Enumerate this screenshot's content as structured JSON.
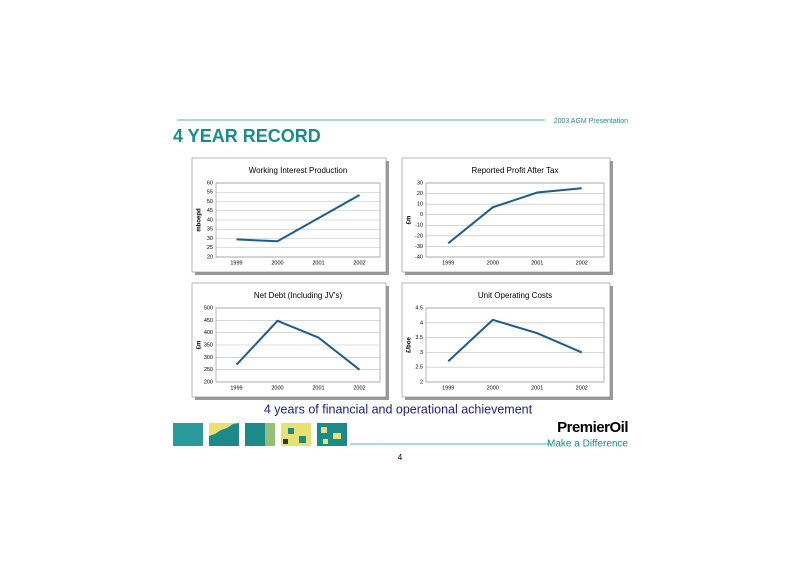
{
  "header": {
    "presentation": "2003 AGM Presentation",
    "title": "4 YEAR RECORD"
  },
  "caption": "4 years of financial and operational achievement",
  "footer": {
    "company": "PremierOil",
    "slogan": "Make a Difference",
    "page": "4"
  },
  "chart_data": [
    {
      "type": "line",
      "title": "Working Interest Production",
      "y_label": "mboepd",
      "categories": [
        "1999",
        "2000",
        "2001",
        "2002"
      ],
      "values": [
        29.5,
        28.5,
        41,
        53.5
      ],
      "color": "#1d5c8c",
      "ylim": [
        20,
        60
      ],
      "yticks": [
        20,
        25,
        30,
        35,
        40,
        45,
        50,
        55,
        60
      ],
      "grid": true
    },
    {
      "type": "line",
      "title": "Reported Profit After Tax",
      "y_label": "£m",
      "categories": [
        "1999",
        "2000",
        "2001",
        "2002"
      ],
      "values": [
        -27,
        7,
        21,
        25
      ],
      "color": "#1d5c8c",
      "ylim": [
        -40,
        30
      ],
      "yticks": [
        -40,
        -30,
        -20,
        -10,
        0,
        10,
        20,
        30
      ],
      "grid": true
    },
    {
      "type": "line",
      "title": "Net Debt (Including JV's)",
      "y_label": "£m",
      "categories": [
        "1999",
        "2000",
        "2001",
        "2002"
      ],
      "values": [
        270,
        448,
        380,
        250
      ],
      "color": "#1d5c8c",
      "ylim": [
        200,
        500
      ],
      "yticks": [
        200,
        250,
        300,
        350,
        400,
        450,
        500
      ],
      "grid": true
    },
    {
      "type": "line",
      "title": "Unit Operating Costs",
      "y_label": "£/boe",
      "categories": [
        "1999",
        "2000",
        "2001",
        "2002"
      ],
      "values": [
        2.7,
        4.1,
        3.65,
        3.0
      ],
      "color": "#1d5c8c",
      "ylim": [
        2,
        4.5
      ],
      "yticks": [
        2,
        2.5,
        3,
        3.5,
        4,
        4.5
      ],
      "grid": true
    }
  ]
}
